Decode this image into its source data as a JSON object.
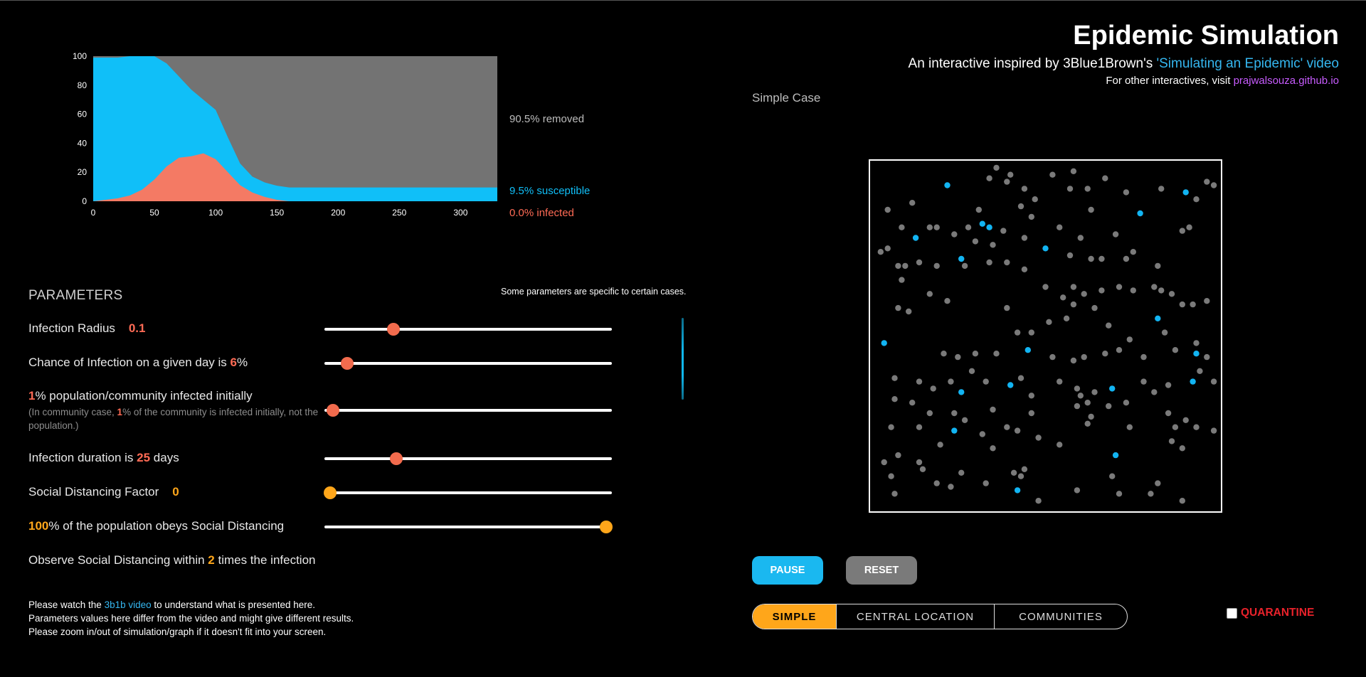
{
  "header": {
    "title": "Epidemic Simulation",
    "subtitle_prefix": "An interactive inspired by 3Blue1Brown's ",
    "subtitle_link": "'Simulating an Epidemic' video",
    "visit_prefix": "For other interactives, visit ",
    "visit_link": "prajwalsouza.github.io"
  },
  "case_label": "Simple Case",
  "chart_data": {
    "type": "area",
    "x_ticks": [
      "0",
      "50",
      "100",
      "150",
      "200",
      "250",
      "300"
    ],
    "y_ticks": [
      "0",
      "20",
      "40",
      "60",
      "80",
      "100"
    ],
    "xlim": [
      0,
      330
    ],
    "ylim": [
      0,
      100
    ],
    "x": [
      0,
      10,
      20,
      30,
      40,
      50,
      60,
      70,
      80,
      90,
      100,
      110,
      120,
      130,
      140,
      150,
      160,
      170,
      200,
      250,
      300,
      330
    ],
    "series": [
      {
        "name": "infected",
        "color": "#f47a64",
        "values": [
          0,
          1,
          2,
          4,
          8,
          15,
          24,
          30,
          31,
          33,
          29,
          20,
          11,
          6,
          3,
          1,
          0,
          0,
          0,
          0,
          0,
          0
        ]
      },
      {
        "name": "susceptible",
        "color": "#10bff8",
        "values": [
          99,
          98,
          97,
          96,
          92,
          85,
          71,
          56,
          46,
          37,
          34,
          24,
          15,
          11,
          10,
          9.7,
          9.5,
          9.5,
          9.5,
          9.5,
          9.5,
          9.5
        ]
      },
      {
        "name": "removed",
        "color": "#737373",
        "values": [
          1,
          1,
          1,
          0,
          0,
          0,
          5,
          14,
          23,
          30,
          37,
          56,
          74,
          83,
          87,
          89.3,
          90.5,
          90.5,
          90.5,
          90.5,
          90.5,
          90.5
        ]
      }
    ],
    "legend": {
      "removed": "90.5% removed",
      "susceptible": "9.5% susceptible",
      "infected": "0.0% infected"
    }
  },
  "params": {
    "title": "PARAMETERS",
    "note": "Some parameters are specific to certain cases.",
    "infection_radius": {
      "label": "Infection Radius",
      "value": "0.1",
      "fraction": 0.24
    },
    "chance": {
      "pre": "Chance of Infection on a given day is ",
      "value": "6",
      "post": "%",
      "fraction": 0.08
    },
    "initial": {
      "value": "1",
      "post": "% population/community infected initially",
      "sub_pre": "(In community case, ",
      "sub_value": "1",
      "sub_post": "% of the community is infected initially, not the population.)",
      "fraction": 0.03
    },
    "duration": {
      "pre": "Infection duration is ",
      "value": "25",
      "post": " days",
      "fraction": 0.25
    },
    "social_factor": {
      "label": "Social Distancing Factor",
      "value": "0",
      "fraction": 0.02
    },
    "obey": {
      "value": "100",
      "post": "% of the population obeys Social Distancing",
      "fraction": 0.98
    },
    "observe": {
      "pre": "Observe Social Distancing within ",
      "value": "2",
      "post": " times the infection"
    }
  },
  "footer": {
    "line1_pre": "Please watch the ",
    "line1_link": "3b1b video",
    "line1_post": " to understand what is presented here.",
    "line2": "Parameters values here differ from the video and might give different results.",
    "line3": "Please zoom in/out of simulation/graph if it doesn't fit into your screen."
  },
  "controls": {
    "pause": "PAUSE",
    "reset": "RESET",
    "tabs": [
      "SIMPLE",
      "CENTRAL LOCATION",
      "COMMUNITIES"
    ],
    "active_tab": 0,
    "quarantine": "QUARANTINE",
    "quarantine_checked": false
  },
  "simulation": {
    "gray_color": "#7a7a7a",
    "blue_color": "#12b4f2",
    "particles_note_removed": "gray",
    "blue": [
      [
        0.22,
        0.07
      ],
      [
        0.9,
        0.09
      ],
      [
        0.13,
        0.22
      ],
      [
        0.32,
        0.18
      ],
      [
        0.34,
        0.19
      ],
      [
        0.77,
        0.15
      ],
      [
        0.5,
        0.25
      ],
      [
        0.26,
        0.28
      ],
      [
        0.04,
        0.52
      ],
      [
        0.82,
        0.45
      ],
      [
        0.45,
        0.54
      ],
      [
        0.93,
        0.55
      ],
      [
        0.4,
        0.64
      ],
      [
        0.26,
        0.66
      ],
      [
        0.69,
        0.65
      ],
      [
        0.92,
        0.63
      ],
      [
        0.24,
        0.77
      ],
      [
        0.7,
        0.84
      ],
      [
        0.42,
        0.94
      ]
    ],
    "gray": [
      [
        0.05,
        0.14
      ],
      [
        0.12,
        0.12
      ],
      [
        0.31,
        0.14
      ],
      [
        0.34,
        0.05
      ],
      [
        0.36,
        0.02
      ],
      [
        0.39,
        0.06
      ],
      [
        0.4,
        0.04
      ],
      [
        0.44,
        0.08
      ],
      [
        0.43,
        0.13
      ],
      [
        0.47,
        0.11
      ],
      [
        0.52,
        0.04
      ],
      [
        0.57,
        0.08
      ],
      [
        0.58,
        0.03
      ],
      [
        0.62,
        0.08
      ],
      [
        0.63,
        0.14
      ],
      [
        0.67,
        0.05
      ],
      [
        0.73,
        0.09
      ],
      [
        0.83,
        0.08
      ],
      [
        0.93,
        0.11
      ],
      [
        0.96,
        0.06
      ],
      [
        0.98,
        0.07
      ],
      [
        0.05,
        0.25
      ],
      [
        0.03,
        0.26
      ],
      [
        0.09,
        0.19
      ],
      [
        0.17,
        0.19
      ],
      [
        0.19,
        0.19
      ],
      [
        0.24,
        0.21
      ],
      [
        0.28,
        0.19
      ],
      [
        0.3,
        0.23
      ],
      [
        0.35,
        0.24
      ],
      [
        0.38,
        0.2
      ],
      [
        0.44,
        0.22
      ],
      [
        0.46,
        0.16
      ],
      [
        0.54,
        0.19
      ],
      [
        0.57,
        0.27
      ],
      [
        0.6,
        0.22
      ],
      [
        0.63,
        0.28
      ],
      [
        0.66,
        0.28
      ],
      [
        0.7,
        0.21
      ],
      [
        0.73,
        0.28
      ],
      [
        0.75,
        0.26
      ],
      [
        0.82,
        0.3
      ],
      [
        0.89,
        0.2
      ],
      [
        0.91,
        0.19
      ],
      [
        0.08,
        0.3
      ],
      [
        0.1,
        0.3
      ],
      [
        0.09,
        0.34
      ],
      [
        0.14,
        0.29
      ],
      [
        0.19,
        0.3
      ],
      [
        0.27,
        0.3
      ],
      [
        0.34,
        0.29
      ],
      [
        0.39,
        0.29
      ],
      [
        0.44,
        0.31
      ],
      [
        0.5,
        0.36
      ],
      [
        0.55,
        0.39
      ],
      [
        0.58,
        0.36
      ],
      [
        0.61,
        0.38
      ],
      [
        0.66,
        0.37
      ],
      [
        0.71,
        0.36
      ],
      [
        0.75,
        0.37
      ],
      [
        0.81,
        0.36
      ],
      [
        0.83,
        0.37
      ],
      [
        0.86,
        0.38
      ],
      [
        0.89,
        0.41
      ],
      [
        0.92,
        0.41
      ],
      [
        0.96,
        0.4
      ],
      [
        0.08,
        0.42
      ],
      [
        0.11,
        0.43
      ],
      [
        0.17,
        0.38
      ],
      [
        0.22,
        0.4
      ],
      [
        0.39,
        0.42
      ],
      [
        0.42,
        0.49
      ],
      [
        0.46,
        0.49
      ],
      [
        0.51,
        0.46
      ],
      [
        0.56,
        0.45
      ],
      [
        0.58,
        0.41
      ],
      [
        0.64,
        0.42
      ],
      [
        0.68,
        0.47
      ],
      [
        0.74,
        0.51
      ],
      [
        0.78,
        0.56
      ],
      [
        0.84,
        0.49
      ],
      [
        0.87,
        0.54
      ],
      [
        0.93,
        0.52
      ],
      [
        0.96,
        0.56
      ],
      [
        0.21,
        0.55
      ],
      [
        0.25,
        0.56
      ],
      [
        0.3,
        0.55
      ],
      [
        0.36,
        0.55
      ],
      [
        0.52,
        0.56
      ],
      [
        0.58,
        0.57
      ],
      [
        0.61,
        0.56
      ],
      [
        0.67,
        0.55
      ],
      [
        0.71,
        0.54
      ],
      [
        0.07,
        0.62
      ],
      [
        0.14,
        0.63
      ],
      [
        0.18,
        0.65
      ],
      [
        0.23,
        0.63
      ],
      [
        0.29,
        0.6
      ],
      [
        0.33,
        0.63
      ],
      [
        0.43,
        0.62
      ],
      [
        0.46,
        0.67
      ],
      [
        0.54,
        0.63
      ],
      [
        0.59,
        0.65
      ],
      [
        0.6,
        0.67
      ],
      [
        0.64,
        0.66
      ],
      [
        0.73,
        0.69
      ],
      [
        0.78,
        0.63
      ],
      [
        0.81,
        0.66
      ],
      [
        0.85,
        0.64
      ],
      [
        0.94,
        0.6
      ],
      [
        0.98,
        0.63
      ],
      [
        0.07,
        0.68
      ],
      [
        0.12,
        0.69
      ],
      [
        0.17,
        0.72
      ],
      [
        0.24,
        0.72
      ],
      [
        0.35,
        0.71
      ],
      [
        0.39,
        0.76
      ],
      [
        0.46,
        0.72
      ],
      [
        0.59,
        0.7
      ],
      [
        0.62,
        0.69
      ],
      [
        0.63,
        0.73
      ],
      [
        0.74,
        0.76
      ],
      [
        0.85,
        0.72
      ],
      [
        0.87,
        0.76
      ],
      [
        0.9,
        0.74
      ],
      [
        0.93,
        0.76
      ],
      [
        0.98,
        0.77
      ],
      [
        0.06,
        0.76
      ],
      [
        0.14,
        0.76
      ],
      [
        0.2,
        0.81
      ],
      [
        0.27,
        0.74
      ],
      [
        0.32,
        0.78
      ],
      [
        0.35,
        0.82
      ],
      [
        0.42,
        0.77
      ],
      [
        0.48,
        0.79
      ],
      [
        0.54,
        0.81
      ],
      [
        0.62,
        0.75
      ],
      [
        0.68,
        0.7
      ],
      [
        0.86,
        0.8
      ],
      [
        0.89,
        0.82
      ],
      [
        0.04,
        0.86
      ],
      [
        0.06,
        0.9
      ],
      [
        0.14,
        0.86
      ],
      [
        0.15,
        0.88
      ],
      [
        0.19,
        0.92
      ],
      [
        0.23,
        0.93
      ],
      [
        0.26,
        0.89
      ],
      [
        0.33,
        0.92
      ],
      [
        0.41,
        0.89
      ],
      [
        0.43,
        0.9
      ],
      [
        0.44,
        0.88
      ],
      [
        0.48,
        0.97
      ],
      [
        0.59,
        0.94
      ],
      [
        0.69,
        0.9
      ],
      [
        0.71,
        0.95
      ],
      [
        0.8,
        0.95
      ],
      [
        0.82,
        0.92
      ],
      [
        0.89,
        0.97
      ],
      [
        0.07,
        0.95
      ],
      [
        0.08,
        0.84
      ]
    ]
  }
}
